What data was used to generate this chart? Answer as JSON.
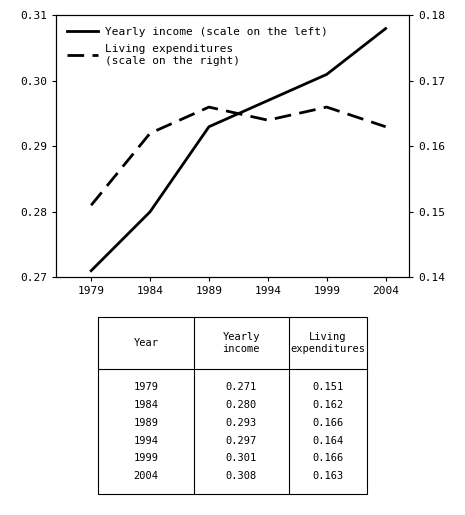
{
  "years": [
    1979,
    1984,
    1989,
    1994,
    1999,
    2004
  ],
  "yearly_income": [
    0.271,
    0.28,
    0.293,
    0.297,
    0.301,
    0.308
  ],
  "living_expenditures": [
    0.151,
    0.162,
    0.166,
    0.164,
    0.166,
    0.163
  ],
  "left_ylim": [
    0.27,
    0.31
  ],
  "right_ylim": [
    0.14,
    0.18
  ],
  "left_yticks": [
    0.27,
    0.28,
    0.29,
    0.3,
    0.31
  ],
  "right_yticks": [
    0.14,
    0.15,
    0.16,
    0.17,
    0.18
  ],
  "xticks": [
    1979,
    1984,
    1989,
    1994,
    1999,
    2004
  ],
  "xlim": [
    1976,
    2006
  ],
  "legend_income": "Yearly income (scale on the left)",
  "legend_expenditures": "Living expenditures\n(scale on the right)",
  "table_headers": [
    "Year",
    "Yearly\nincome",
    "Living\nexpenditures"
  ],
  "table_years": [
    "1979",
    "1984",
    "1989",
    "1994",
    "1999",
    "2004"
  ],
  "table_income": [
    "0.271",
    "0.280",
    "0.293",
    "0.297",
    "0.301",
    "0.308"
  ],
  "table_expenditures": [
    "0.151",
    "0.162",
    "0.166",
    "0.164",
    "0.166",
    "0.163"
  ],
  "line_color": "#000000",
  "bg_color": "#ffffff",
  "dotted_line_y": 0.31,
  "chart_font_size": 8,
  "legend_font_size": 8,
  "table_font_size": 7.5
}
